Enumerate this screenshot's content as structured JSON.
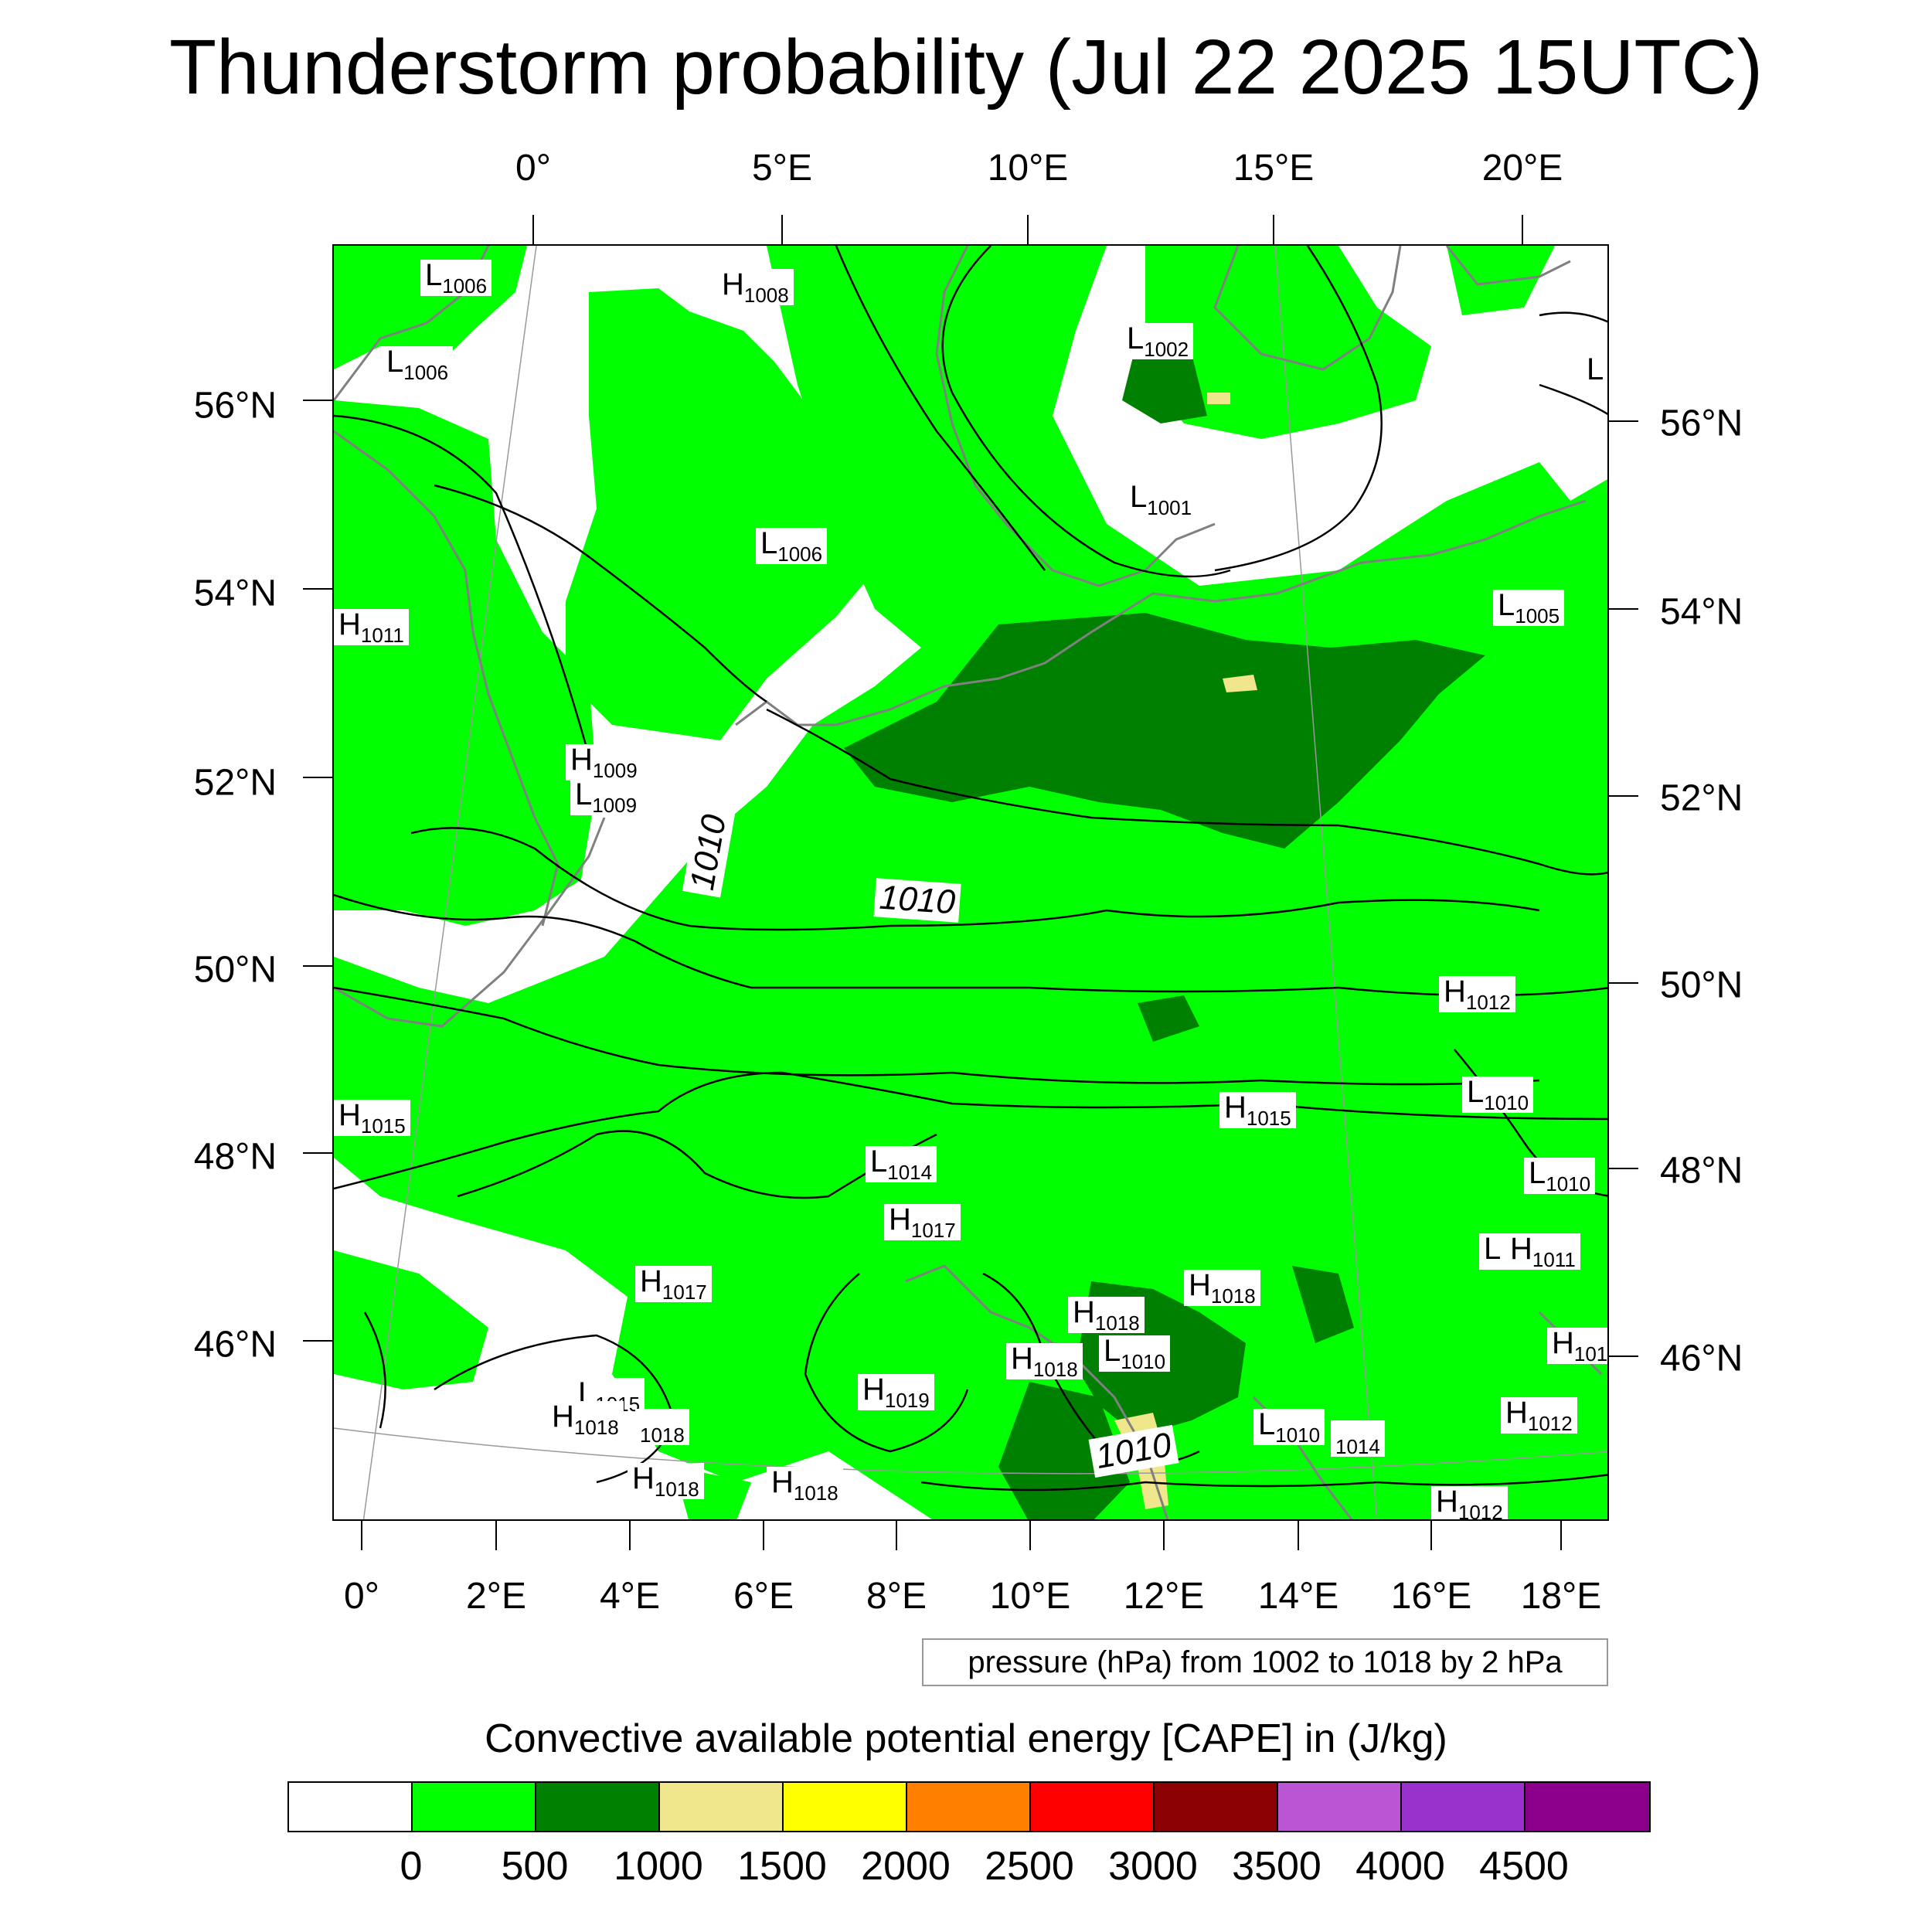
{
  "title": "Thunderstorm probability (Jul 22 2025 15UTC)",
  "top_lon_labels": [
    "0°",
    "5°E",
    "10°E",
    "15°E",
    "20°E"
  ],
  "bottom_lon_labels": [
    "0°",
    "2°E",
    "4°E",
    "6°E",
    "8°E",
    "10°E",
    "12°E",
    "14°E",
    "16°E",
    "18°E"
  ],
  "left_lat_labels": [
    "56°N",
    "54°N",
    "52°N",
    "50°N",
    "48°N",
    "46°N"
  ],
  "right_lat_labels": [
    "56°N",
    "54°N",
    "52°N",
    "50°N",
    "48°N",
    "46°N"
  ],
  "pressure_systems": [
    {
      "type": "L",
      "value": "1006"
    },
    {
      "type": "H",
      "value": "1008"
    },
    {
      "type": "L",
      "value": "1006"
    },
    {
      "type": "L",
      "value": "1002"
    },
    {
      "type": "L",
      "value": ""
    },
    {
      "type": "L",
      "value": "1001"
    },
    {
      "type": "L",
      "value": "1006"
    },
    {
      "type": "H",
      "value": "1011"
    },
    {
      "type": "L",
      "value": "1005"
    },
    {
      "type": "H",
      "value": "1009"
    },
    {
      "type": "L",
      "value": "1009"
    },
    {
      "type": "H",
      "value": "1012"
    },
    {
      "type": "H",
      "value": "1015"
    },
    {
      "type": "L",
      "value": "1010"
    },
    {
      "type": "H",
      "value": "1015"
    },
    {
      "type": "L",
      "value": "1014"
    },
    {
      "type": "L",
      "value": "1010"
    },
    {
      "type": "H",
      "value": "1017"
    },
    {
      "type": "H",
      "value": "1017"
    },
    {
      "type": "L",
      "value": ""
    },
    {
      "type": "H",
      "value": "1011"
    },
    {
      "type": "H",
      "value": "1018"
    },
    {
      "type": "H",
      "value": "1018"
    },
    {
      "type": "L",
      "value": "1010"
    },
    {
      "type": "H",
      "value": "1018"
    },
    {
      "type": "H",
      "value": "101"
    },
    {
      "type": "L",
      "value": "1015"
    },
    {
      "type": "H",
      "value": "1018"
    },
    {
      "type": "",
      "value": "1018"
    },
    {
      "type": "H",
      "value": "1019"
    },
    {
      "type": "L",
      "value": "1010"
    },
    {
      "type": "",
      "value": "1014"
    },
    {
      "type": "H",
      "value": "1012"
    },
    {
      "type": "H",
      "value": "1018"
    },
    {
      "type": "H",
      "value": "1018"
    },
    {
      "type": "H",
      "value": "1012"
    }
  ],
  "isobar_labels": [
    "1010",
    "1010",
    "1010"
  ],
  "pressure_note": "pressure (hPa) from 1002 to 1018 by 2 hPa",
  "colorbar": {
    "title": "Convective available potential energy [CAPE] in (J/kg)",
    "colors": [
      "#ffffff",
      "#00ff00",
      "#008000",
      "#f0e68c",
      "#ffff00",
      "#ff8000",
      "#ff0000",
      "#8b0000",
      "#ba55d3",
      "#9932cc",
      "#8b008b"
    ],
    "ticks": [
      "0",
      "500",
      "1000",
      "1500",
      "2000",
      "2500",
      "3000",
      "3500",
      "4000",
      "4500"
    ]
  }
}
